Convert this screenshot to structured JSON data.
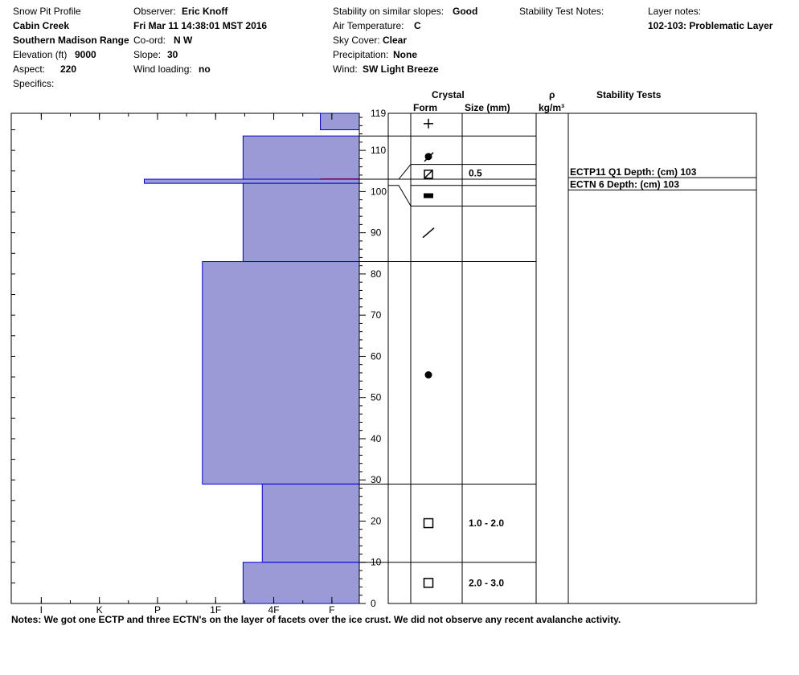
{
  "header": {
    "title": "Snow Pit Profile",
    "location": "Cabin Creek",
    "range": "Southern Madison Range",
    "elevation_label": "Elevation (ft)",
    "elevation_value": "9000",
    "aspect_label": "Aspect:",
    "aspect_value": "220",
    "specifics_label": "Specifics:",
    "observer_label": "Observer:",
    "observer_value": "Eric Knoff",
    "date": "Fri Mar 11 14:38:01 MST 2016",
    "coord_label": "Co-ord:",
    "coord_value": "N  W",
    "slope_label": "Slope:",
    "slope_value": "30",
    "wind_loading_label": "Wind loading:",
    "wind_loading_value": "no",
    "stability_label": "Stability on similar slopes:",
    "stability_value": "Good",
    "air_temp_label": "Air Temperature:",
    "air_temp_value": "C",
    "sky_label": "Sky Cover:",
    "sky_value": "Clear",
    "precip_label": "Precipitation:",
    "precip_value": "None",
    "wind_label": "Wind:",
    "wind_value": "SW Light Breeze",
    "stability_test_notes_label": "Stability Test Notes:",
    "layer_notes_label": "Layer notes:",
    "layer_notes_value": "102-103: Problematic Layer"
  },
  "columns": {
    "crystal": "Crystal",
    "form": "Form",
    "size": "Size (mm)",
    "rho": "ρ",
    "density_unit": "kg/m³",
    "stability_tests": "Stability Tests"
  },
  "notes": "Notes:  We got one ECTP and three ECTN's on the layer of facets over the ice crust. We did not observe any recent avalanche activity.",
  "colors": {
    "hardness_fill": "#9a9ad6",
    "hardness_stroke": "#0000cc",
    "ice_crust_line": "#dd0000"
  },
  "chart_data": {
    "type": "bar",
    "orientation": "horizontal",
    "xlabel": "",
    "ylabel": "",
    "hardness_scale": [
      "I",
      "K",
      "P",
      "1F",
      "4F",
      "F"
    ],
    "hardness_scale_order": [
      "F",
      "4F",
      "1F",
      "P",
      "K",
      "I"
    ],
    "depth_ticks": [
      "119",
      "110",
      "100",
      "90",
      "80",
      "70",
      "60",
      "50",
      "40",
      "30",
      "20",
      "10",
      "0"
    ],
    "ylim": [
      0,
      119
    ],
    "hardness_units_from_fist": [
      0,
      6
    ],
    "layers": [
      {
        "bottom": 115,
        "top": 119,
        "hardness": "F",
        "hardness_value": 0.67,
        "form": "new-snow"
      },
      {
        "bottom": 103,
        "top": 113.5,
        "hardness": "4F",
        "hardness_value": 2.0,
        "form": "decomposing"
      },
      {
        "bottom": 103,
        "top": 103,
        "hardness": "F",
        "hardness_value": 0.67,
        "form": "ice-crust-line"
      },
      {
        "bottom": 102,
        "top": 103,
        "hardness": "P",
        "hardness_value": 3.7,
        "form": "faceted",
        "size": "0.5"
      },
      {
        "bottom": 83,
        "top": 102,
        "hardness": "4F",
        "hardness_value": 2.0,
        "form": "rounded"
      },
      {
        "bottom": 29,
        "top": 83,
        "hardness": "1F",
        "hardness_value": 2.7,
        "form": "rounded"
      },
      {
        "bottom": 10,
        "top": 29,
        "hardness": "4F-",
        "hardness_value": 1.67,
        "form": "faceted",
        "size": "1.0 - 2.0"
      },
      {
        "bottom": 0,
        "top": 10,
        "hardness": "4F",
        "hardness_value": 2.0,
        "form": "faceted",
        "size": "2.0 - 3.0"
      }
    ],
    "stability_tests": [
      {
        "label": "ECTP11 Q1 Depth: (cm) 103",
        "depth": 103
      },
      {
        "label": "ECTN 6   Depth: (cm) 103",
        "depth": 103
      }
    ]
  }
}
